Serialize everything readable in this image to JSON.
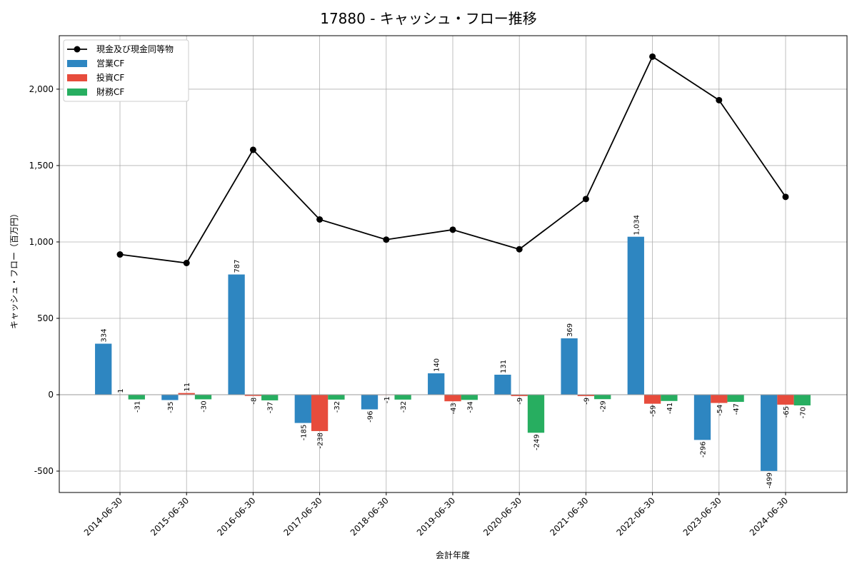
{
  "chart_data": {
    "type": "bar",
    "title": "17880 - キャッシュ・フロー推移",
    "xlabel": "会計年度",
    "ylabel": "キャッシュ・フロー（百万円）",
    "ylim": [
      -640,
      2350
    ],
    "yticks": [
      -500,
      0,
      500,
      1000,
      1500,
      2000
    ],
    "ytick_labels": [
      "-500",
      "0",
      "500",
      "1,000",
      "1,500",
      "2,000"
    ],
    "grid": true,
    "legend_position": "top-left",
    "categories": [
      "2014-06-30",
      "2015-06-30",
      "2016-06-30",
      "2017-06-30",
      "2018-06-30",
      "2019-06-30",
      "2020-06-30",
      "2021-06-30",
      "2022-06-30",
      "2023-06-30",
      "2024-06-30"
    ],
    "series": [
      {
        "name": "営業CF",
        "type": "bar",
        "color": "#2e86c1",
        "values": [
          334,
          -35,
          787,
          -185,
          -96,
          140,
          131,
          369,
          1034,
          -296,
          -499
        ],
        "labels": [
          "334",
          "-35",
          "787",
          "-185",
          "-96",
          "140",
          "131",
          "369",
          "1,034",
          "-296",
          "-499"
        ]
      },
      {
        "name": "投資CF",
        "type": "bar",
        "color": "#e74c3c",
        "values": [
          1,
          11,
          -8,
          -238,
          -1,
          -43,
          -9,
          -9,
          -59,
          -54,
          -65
        ],
        "labels": [
          "1",
          "11",
          "-8",
          "-238",
          "-1",
          "-43",
          "-9",
          "-9",
          "-59",
          "-54",
          "-65"
        ]
      },
      {
        "name": "財務CF",
        "type": "bar",
        "color": "#27ae60",
        "values": [
          -31,
          -30,
          -37,
          -32,
          -32,
          -34,
          -249,
          -29,
          -41,
          -47,
          -70
        ],
        "labels": [
          "-31",
          "-30",
          "-37",
          "-32",
          "-32",
          "-34",
          "-249",
          "-29",
          "-41",
          "-47",
          "-70"
        ]
      },
      {
        "name": "現金及び現金同等物",
        "type": "line",
        "color": "#000000",
        "values": [
          918,
          862,
          1603,
          1147,
          1015,
          1080,
          952,
          1281,
          2213,
          1928,
          1295
        ]
      }
    ]
  }
}
